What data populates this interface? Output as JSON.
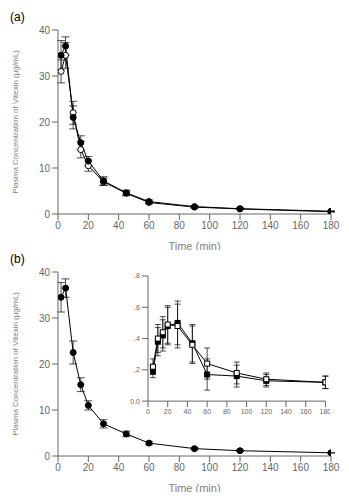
{
  "chart_data": [
    {
      "type": "line",
      "title": "(a)",
      "xlabel": "Time (min)",
      "ylabel": "Plasma Concentration of Vitexin (μg/mL)",
      "x": [
        2,
        5,
        10,
        15,
        20,
        30,
        45,
        60,
        90,
        120,
        180
      ],
      "series": [
        {
          "color": "#000000",
          "marker": "circle_open",
          "values": [
            31.0,
            34.5,
            22.0,
            14.0,
            10.5,
            7.0,
            4.5,
            2.5,
            1.5,
            1.1,
            0.5
          ],
          "error": [
            2.5,
            2.8,
            2.5,
            1.8,
            1.2,
            0.8,
            0.5,
            0.3,
            0.2,
            0.15,
            0.08
          ]
        },
        {
          "color": "#000000",
          "marker": "circle",
          "values": [
            34.5,
            36.5,
            21.0,
            15.5,
            11.5,
            7.2,
            4.6,
            2.7,
            1.6,
            1.15,
            0.6
          ],
          "error": [
            3.2,
            2.0,
            2.5,
            1.5,
            1.0,
            0.9,
            0.6,
            0.35,
            0.22,
            0.18,
            0.09
          ]
        }
      ],
      "xlim": [
        0,
        180
      ],
      "xticks": [
        0,
        20,
        40,
        60,
        80,
        100,
        120,
        140,
        160,
        180
      ],
      "ylim": [
        0,
        40
      ],
      "yticks": [
        0,
        10,
        20,
        30,
        40
      ]
    },
    {
      "type": "line",
      "title": "(b)",
      "xlabel": "Time (min)",
      "ylabel": "Plasma Concentration of Vitexin (μg/mL)",
      "x": [
        2,
        5,
        10,
        15,
        20,
        30,
        45,
        60,
        90,
        120,
        180
      ],
      "series": [
        {
          "color": "#000000",
          "marker": "circle",
          "values": [
            34.5,
            36.5,
            22.5,
            15.5,
            11.0,
            7.0,
            4.8,
            2.8,
            1.6,
            1.15,
            0.7
          ],
          "error": [
            3.2,
            2.0,
            2.5,
            1.5,
            1.0,
            0.9,
            0.6,
            0.35,
            0.22,
            0.18,
            0.09
          ]
        }
      ],
      "xlim": [
        0,
        180
      ],
      "xticks": [
        0,
        20,
        40,
        60,
        80,
        100,
        120,
        140,
        160,
        180
      ],
      "ylim": [
        0,
        40
      ],
      "yticks": [
        0,
        10,
        20,
        30,
        40
      ]
    },
    {
      "type": "line",
      "x": [
        5,
        10,
        15,
        20,
        30,
        45,
        60,
        90,
        120,
        180
      ],
      "series": [
        {
          "color": "#000000",
          "marker": "square",
          "values": [
            0.19,
            0.38,
            0.42,
            0.48,
            0.5,
            0.37,
            0.17,
            0.16,
            0.13,
            0.12
          ],
          "error": [
            0.04,
            0.09,
            0.1,
            0.12,
            0.14,
            0.12,
            0.1,
            0.07,
            0.04,
            0.04
          ]
        },
        {
          "color": "#000000",
          "marker": "square_open",
          "values": [
            0.22,
            0.4,
            0.44,
            0.49,
            0.48,
            0.36,
            0.24,
            0.18,
            0.14,
            0.12
          ],
          "error": [
            0.05,
            0.09,
            0.1,
            0.12,
            0.14,
            0.12,
            0.1,
            0.07,
            0.04,
            0.04
          ]
        }
      ],
      "xlim": [
        0,
        180
      ],
      "xticks": [
        0,
        20,
        40,
        60,
        80,
        100,
        120,
        140,
        160,
        180
      ],
      "ylim": [
        0.0,
        0.8
      ],
      "yticks": [
        {
          "value": 0.0,
          "label": "0.0"
        },
        {
          "value": 0.2,
          "label": ".2"
        },
        {
          "value": 0.4,
          "label": ".4"
        },
        {
          "value": 0.6,
          "label": ".6"
        },
        {
          "value": 0.8,
          "label": ".8"
        }
      ]
    }
  ]
}
